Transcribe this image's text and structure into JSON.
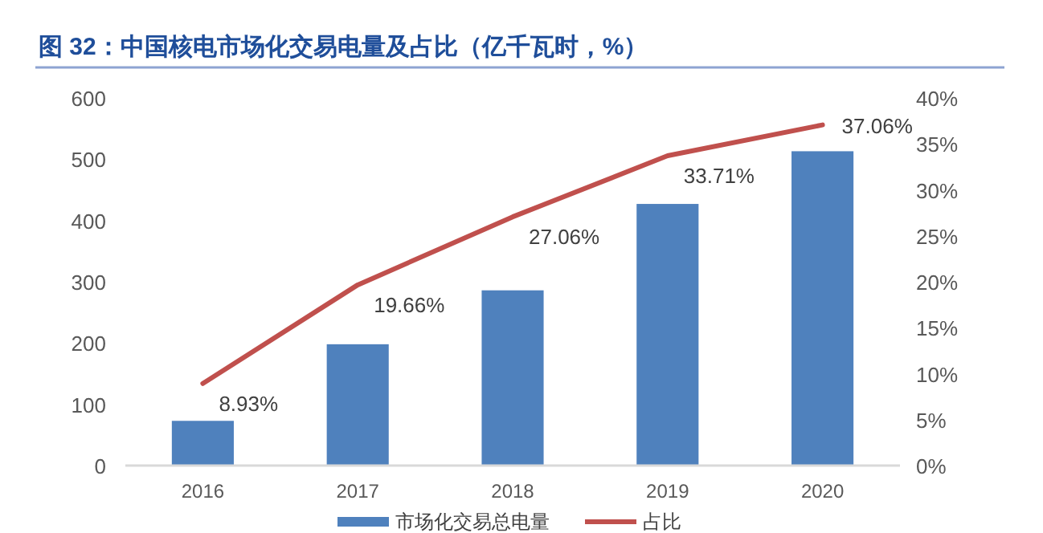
{
  "chart_data": {
    "type": "bar",
    "title": "图 32：中国核电市场化交易电量及占比（亿千瓦时，%）",
    "categories": [
      "2016",
      "2017",
      "2018",
      "2019",
      "2020"
    ],
    "series": [
      {
        "name": "市场化交易总电量",
        "color": "#4f81bd",
        "values": [
          73,
          198,
          286,
          427,
          513
        ]
      },
      {
        "name": "占比",
        "type": "line",
        "axis": "y2",
        "color": "#c0504d",
        "values": [
          8.93,
          19.66,
          27.06,
          33.71,
          37.06
        ],
        "value_labels": [
          "8.93%",
          "19.66%",
          "27.06%",
          "33.71%",
          "37.06%"
        ]
      }
    ],
    "ylim": [
      0,
      600
    ],
    "yticks": [
      0,
      100,
      200,
      300,
      400,
      500,
      600
    ],
    "y2lim": [
      0,
      40
    ],
    "y2ticks": [
      {
        "value": 0,
        "label": "0%"
      },
      {
        "value": 5,
        "label": "5%"
      },
      {
        "value": 10,
        "label": "10%"
      },
      {
        "value": 15,
        "label": "15%"
      },
      {
        "value": 20,
        "label": "20%"
      },
      {
        "value": 25,
        "label": "25%"
      },
      {
        "value": 30,
        "label": "30%"
      },
      {
        "value": 35,
        "label": "35%"
      },
      {
        "value": 40,
        "label": "40%"
      }
    ],
    "grid": false,
    "legend": "bottom"
  }
}
